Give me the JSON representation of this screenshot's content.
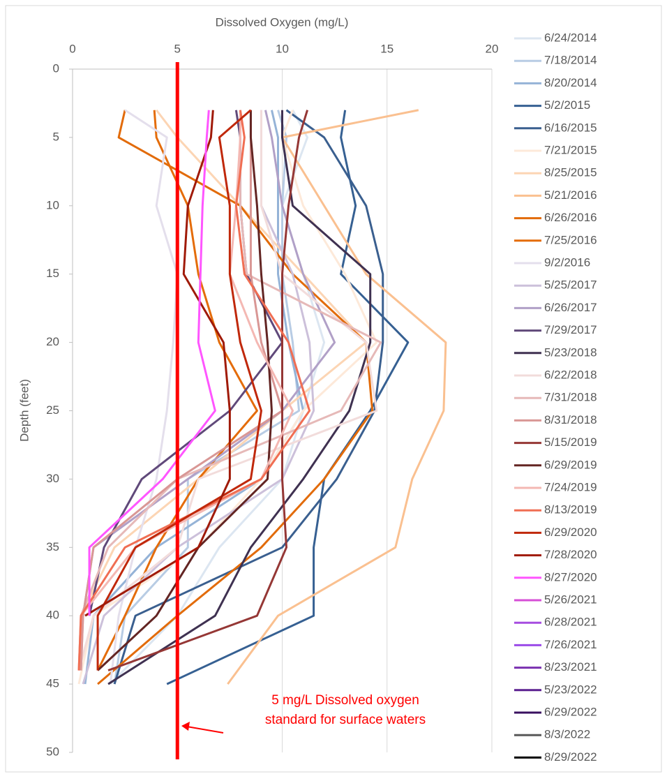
{
  "chart_data": {
    "type": "line",
    "x_label": "Dissolved Oxygen (mg/L)",
    "y_label": "Depth (feet)",
    "xlim": [
      0,
      20
    ],
    "xticks": [
      0,
      5,
      10,
      15,
      20
    ],
    "ylim": [
      0,
      50
    ],
    "yticks": [
      0,
      5,
      10,
      15,
      20,
      25,
      30,
      35,
      40,
      45,
      50
    ],
    "y_inverted": true,
    "grid": true,
    "legend": "right",
    "reference_line": {
      "value": 5,
      "color": "#ff0000",
      "label": [
        "5 mg/L Dissolved oxygen",
        "standard for surface waters"
      ]
    },
    "series": [
      {
        "name": "6/24/2014",
        "color": "#dce6f1",
        "depth": [
          3,
          5,
          10,
          15,
          20,
          25,
          30,
          35,
          40,
          45
        ],
        "values": [
          10.5,
          11.2,
          10,
          11,
          12,
          11,
          10,
          7,
          5,
          1.8
        ]
      },
      {
        "name": "7/18/2014",
        "color": "#b8cce4",
        "depth": [
          3,
          5,
          10,
          15,
          20,
          25,
          30,
          35,
          40,
          45
        ],
        "values": [
          9.8,
          10.2,
          10,
          10,
          10.5,
          10.8,
          5.5,
          5.5,
          2.5,
          2
        ]
      },
      {
        "name": "8/20/2014",
        "color": "#95b3d7",
        "depth": [
          3,
          5,
          10,
          15,
          20,
          25,
          30,
          35,
          40,
          45
        ],
        "values": [
          9.5,
          9.8,
          9.8,
          9.8,
          10.3,
          11,
          9,
          4,
          1,
          0.6
        ]
      },
      {
        "name": "5/2/2015",
        "color": "#366092",
        "depth": [
          3,
          5,
          10,
          15,
          20,
          25,
          30,
          35,
          40,
          45
        ],
        "values": [
          13,
          12.8,
          13.5,
          12.8,
          16,
          14.2,
          12,
          11.5,
          11.5,
          4.5
        ]
      },
      {
        "name": "6/16/2015",
        "color": "#3a5f8f",
        "depth": [
          3,
          5,
          10,
          15,
          20,
          25,
          30,
          35,
          40,
          45
        ],
        "values": [
          10.2,
          12,
          14,
          14.8,
          14.8,
          14.4,
          12.6,
          10,
          3,
          2
        ]
      },
      {
        "name": "7/21/2015",
        "color": "#fde9d9",
        "depth": [
          3,
          5,
          10,
          15,
          20,
          25,
          30,
          35,
          40,
          45
        ],
        "values": [
          10.5,
          10,
          11,
          13,
          14.5,
          11,
          9,
          6,
          1,
          0.3
        ]
      },
      {
        "name": "8/25/2015",
        "color": "#fcd5b4",
        "depth": [
          3,
          5,
          10,
          15,
          20,
          25,
          30,
          35,
          40,
          44
        ],
        "values": [
          4,
          5,
          8,
          11,
          14,
          10,
          6,
          2,
          0.4,
          0.4
        ]
      },
      {
        "name": "5/21/2016",
        "color": "#fac090",
        "depth": [
          3,
          5,
          10,
          15,
          20,
          25,
          30,
          35,
          40,
          45
        ],
        "values": [
          16.5,
          10,
          12,
          14,
          17.8,
          17.7,
          16.2,
          15.4,
          9.8,
          7.4
        ]
      },
      {
        "name": "6/26/2016",
        "color": "#e26b0a",
        "depth": [
          3,
          5,
          10,
          15,
          20,
          25,
          30,
          35,
          40,
          45
        ],
        "values": [
          2.5,
          2.2,
          8,
          10.5,
          14,
          14.3,
          12,
          9,
          5,
          1.2
        ]
      },
      {
        "name": "7/25/2016",
        "color": "#e46c0a",
        "depth": [
          3,
          5,
          10,
          15,
          20,
          25,
          30,
          35,
          40,
          44
        ],
        "values": [
          3.9,
          4,
          5.5,
          6,
          7,
          8.8,
          6,
          4,
          2.5,
          1.2
        ]
      },
      {
        "name": "9/2/2016",
        "color": "#e4dfec",
        "depth": [
          3,
          5,
          10,
          15,
          20,
          25,
          30,
          35,
          40,
          45
        ],
        "values": [
          2.5,
          4.5,
          4,
          5,
          4.8,
          4.5,
          4,
          3,
          2.2,
          1.8
        ]
      },
      {
        "name": "5/25/2017",
        "color": "#ccc0da",
        "depth": [
          3,
          5,
          10,
          15,
          20,
          25,
          30,
          35,
          40,
          45
        ],
        "values": [
          9,
          9,
          9,
          10.5,
          11.3,
          11.5,
          10,
          5,
          1.5,
          0.5
        ]
      },
      {
        "name": "6/26/2017",
        "color": "#b1a0c7",
        "depth": [
          3,
          5,
          10,
          15,
          20,
          25,
          30,
          35,
          40,
          44
        ],
        "values": [
          9.2,
          9.5,
          10,
          11,
          12.5,
          10,
          5.5,
          1,
          0.5,
          0.4
        ]
      },
      {
        "name": "7/29/2017",
        "color": "#60497a",
        "depth": [
          3,
          5,
          10,
          15,
          20,
          25,
          30,
          35,
          40
        ],
        "values": [
          7.8,
          8,
          8,
          8.3,
          10,
          7.5,
          3.3,
          1.5,
          0.8
        ]
      },
      {
        "name": "5/23/2018",
        "color": "#3f3151",
        "depth": [
          3,
          5,
          10,
          15,
          20,
          25,
          30,
          35,
          40,
          45
        ],
        "values": [
          10,
          10,
          10.5,
          14.2,
          14.2,
          13.2,
          11,
          8.5,
          6.8,
          1.7
        ]
      },
      {
        "name": "6/22/2018",
        "color": "#f2dcdb",
        "depth": [
          3,
          5,
          10,
          15,
          20,
          25,
          30,
          35,
          40,
          44
        ],
        "values": [
          9,
          9,
          9,
          10,
          14,
          14.5,
          6,
          5,
          1,
          0.3
        ]
      },
      {
        "name": "7/31/2018",
        "color": "#e6b9b8",
        "depth": [
          3,
          5,
          10,
          15,
          20,
          25,
          30,
          35,
          40,
          44
        ],
        "values": [
          8,
          8,
          8,
          8.3,
          14.7,
          12.8,
          5,
          1.7,
          0.4,
          0.3
        ]
      },
      {
        "name": "8/31/2018",
        "color": "#d99795",
        "depth": [
          3,
          5,
          10,
          15,
          20,
          25,
          30,
          35,
          40,
          44
        ],
        "values": [
          8.5,
          8.5,
          8.5,
          8.5,
          9,
          10,
          5,
          1,
          0.5,
          0.4
        ]
      },
      {
        "name": "5/15/2019",
        "color": "#953735",
        "depth": [
          3,
          5,
          10,
          15,
          20,
          25,
          30,
          35,
          40,
          44
        ],
        "values": [
          11.2,
          10.8,
          10.3,
          10,
          10,
          10,
          10,
          10.2,
          8.8,
          1.7
        ]
      },
      {
        "name": "6/29/2019",
        "color": "#632523",
        "depth": [
          3,
          5,
          10,
          15,
          20,
          25,
          30,
          35,
          40,
          44
        ],
        "values": [
          8.5,
          8.5,
          8.8,
          9,
          9.3,
          9.5,
          9.3,
          6,
          4,
          1.2
        ]
      },
      {
        "name": "7/24/2019",
        "color": "#f4b8b3",
        "depth": [
          3,
          5,
          10,
          15,
          20,
          25,
          30,
          35,
          40,
          44
        ],
        "values": [
          8,
          8,
          7.8,
          7.5,
          8.8,
          10.5,
          9,
          3,
          0.4,
          0.3
        ]
      },
      {
        "name": "8/13/2019",
        "color": "#f06e53",
        "depth": [
          3,
          5,
          10,
          15,
          20,
          25,
          30,
          35,
          40,
          44
        ],
        "values": [
          8,
          8.2,
          7.8,
          8.2,
          10.3,
          11.3,
          9,
          2.5,
          0.4,
          0.3
        ]
      },
      {
        "name": "6/29/2020",
        "color": "#c0280b",
        "depth": [
          3,
          5,
          10,
          15,
          20,
          25,
          30,
          35,
          40,
          44
        ],
        "values": [
          8.5,
          7,
          7.5,
          7.5,
          8,
          9,
          8.5,
          3,
          1.2,
          1.2
        ]
      },
      {
        "name": "7/28/2020",
        "color": "#a01a08",
        "depth": [
          3,
          5,
          10,
          15,
          20,
          25,
          30,
          35,
          40
        ],
        "values": [
          6.7,
          6.6,
          5.5,
          5.3,
          7.2,
          7.5,
          7.5,
          6,
          0.6
        ]
      },
      {
        "name": "8/27/2020",
        "color": "#ff55ff",
        "depth": [
          3,
          5,
          10,
          15,
          20,
          25,
          30,
          35,
          40
        ],
        "values": [
          6.5,
          6.4,
          6.2,
          6.1,
          6,
          6.8,
          4.3,
          0.8,
          0.8
        ]
      },
      {
        "name": "5/26/2021",
        "color": "#d64fd6",
        "depth": [],
        "values": []
      },
      {
        "name": "6/28/2021",
        "color": "#a64de0",
        "depth": [],
        "values": []
      },
      {
        "name": "7/26/2021",
        "color": "#9b4be8",
        "depth": [],
        "values": []
      },
      {
        "name": "8/23/2021",
        "color": "#7a30b0",
        "depth": [],
        "values": []
      },
      {
        "name": "5/23/2022",
        "color": "#5b2090",
        "depth": [],
        "values": []
      },
      {
        "name": "6/29/2022",
        "color": "#3a1060",
        "depth": [],
        "values": []
      },
      {
        "name": "8/3/2022",
        "color": "#595959",
        "depth": [],
        "values": []
      },
      {
        "name": "8/29/2022",
        "color": "#000000",
        "depth": [],
        "values": []
      }
    ]
  }
}
